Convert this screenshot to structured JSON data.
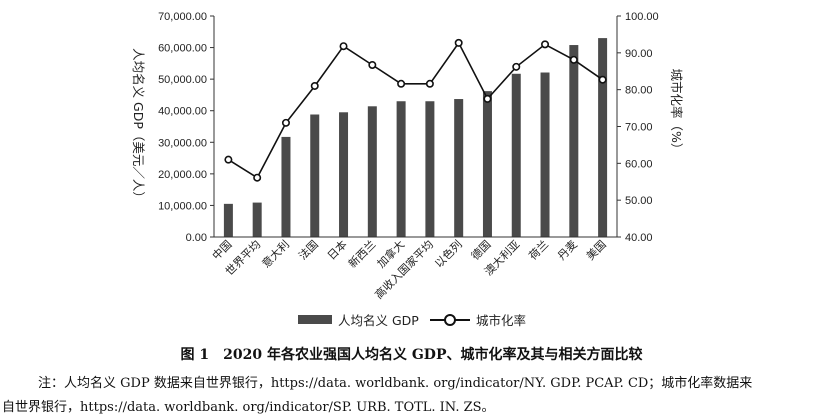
{
  "chart_data": {
    "type": "bar",
    "categories": [
      "中国",
      "世界平均",
      "意大利",
      "法国",
      "日本",
      "新西兰",
      "加拿大",
      "高收入国家平均",
      "以色列",
      "德国",
      "澳大利亚",
      "荷兰",
      "丹麦",
      "美国"
    ],
    "series": [
      {
        "name": "人均名义 GDP",
        "type": "bar",
        "axis": "left",
        "color": "#4a4a4a",
        "values": [
          10500,
          10900,
          31700,
          38800,
          39500,
          41400,
          43000,
          43000,
          43700,
          46200,
          51700,
          52100,
          60800,
          63000
        ]
      },
      {
        "name": "城市化率",
        "type": "line",
        "axis": "right",
        "color": "#111111",
        "values": [
          61.0,
          56.1,
          71.0,
          81.0,
          91.8,
          86.7,
          81.6,
          81.6,
          92.7,
          77.5,
          86.2,
          92.3,
          88.1,
          82.7
        ]
      }
    ],
    "ylabel": "人均名义 GDP（美元／人）",
    "ylabel_right": "城市化率（%）",
    "ylim": [
      0,
      70000
    ],
    "yticks": [
      "0.00",
      "10,000.00",
      "20,000.00",
      "30,000.00",
      "40,000.00",
      "50,000.00",
      "60,000.00",
      "70,000.00"
    ],
    "ylim_right": [
      40,
      100
    ],
    "yticks_right": [
      "40.00",
      "50.00",
      "60.00",
      "70.00",
      "80.00",
      "90.00",
      "100.00"
    ],
    "grid": false,
    "legend_position": "bottom"
  },
  "caption": {
    "figure_label": "图 1",
    "title": "2020 年各农业强国人均名义 GDP、城市化率及其与相关方面比较"
  },
  "note": {
    "line1": "注：人均名义 GDP 数据来自世界银行，https://data. worldbank. org/indicator/NY. GDP. PCAP. CD；城市化率数据来",
    "line2": "自世界银行，https://data. worldbank. org/indicator/SP. URB. TOTL. IN. ZS。"
  }
}
